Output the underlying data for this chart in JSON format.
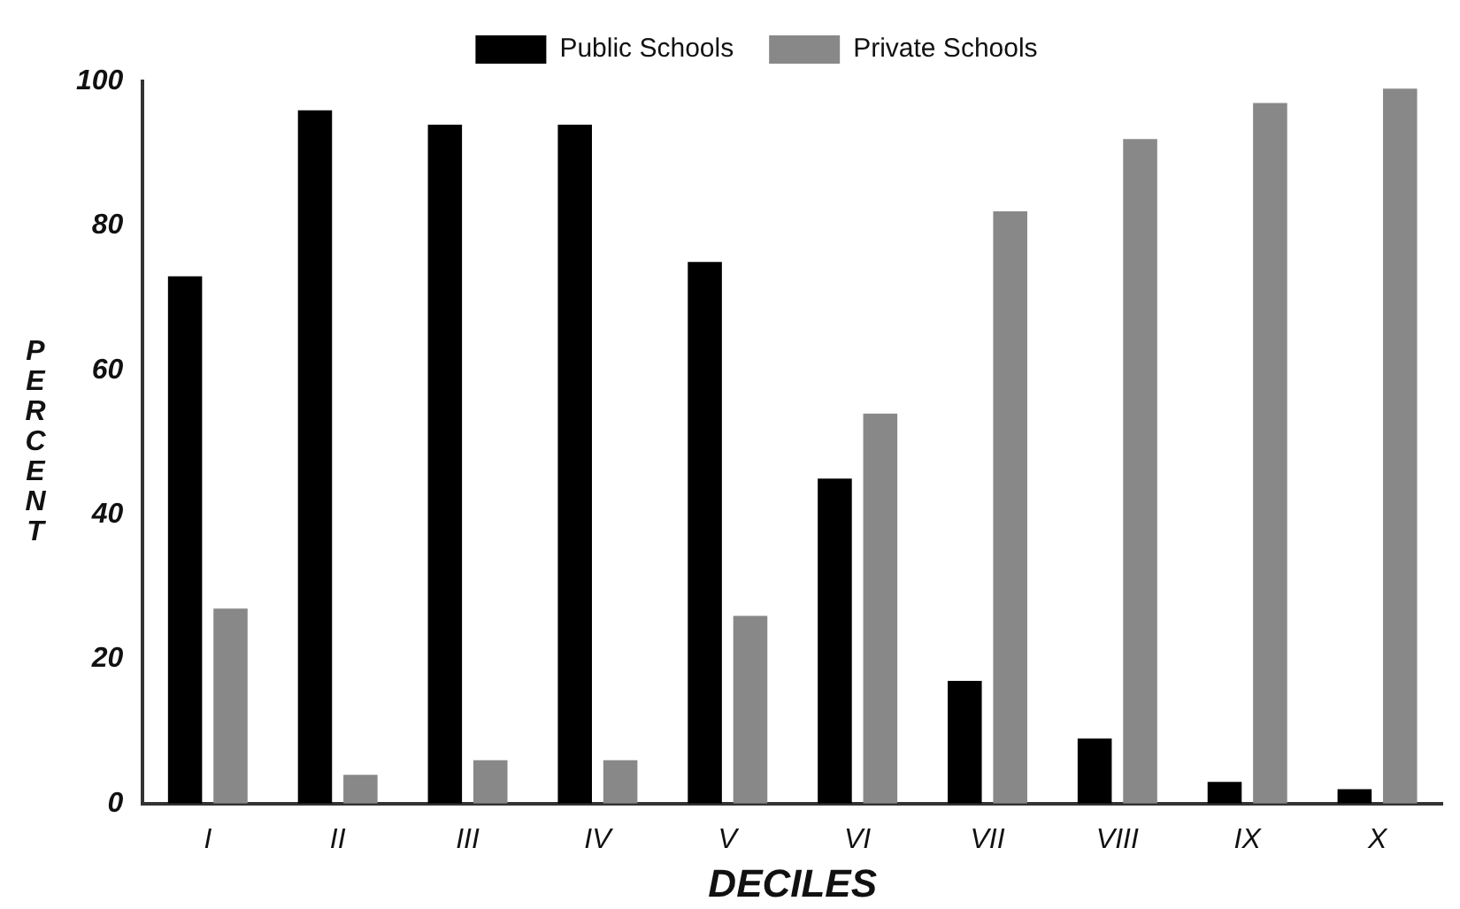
{
  "chart_data": {
    "type": "bar",
    "xlabel": "DECILES",
    "ylabel": "PERCENT",
    "categories": [
      "I",
      "II",
      "III",
      "IV",
      "V",
      "VI",
      "VII",
      "VIII",
      "IX",
      "X"
    ],
    "series": [
      {
        "name": "Public Schools",
        "color": "#000000",
        "values": [
          73,
          96,
          94,
          94,
          75,
          45,
          17,
          9,
          3,
          2
        ]
      },
      {
        "name": "Private Schools",
        "color": "#888888",
        "values": [
          27,
          4,
          6,
          6,
          26,
          54,
          82,
          92,
          97,
          99
        ]
      }
    ],
    "ylim": [
      0,
      100
    ],
    "yticks": [
      0,
      20,
      40,
      60,
      80,
      100
    ],
    "grid": false,
    "legend": "top"
  }
}
